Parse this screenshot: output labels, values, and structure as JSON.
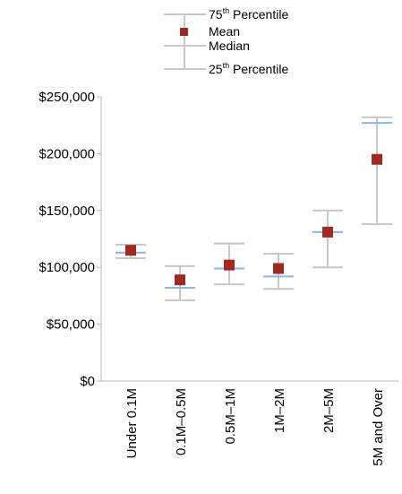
{
  "chart_data": {
    "type": "box",
    "title": "",
    "xlabel": "",
    "ylabel": "",
    "ylim": [
      0,
      250000
    ],
    "yticks": [
      0,
      50000,
      100000,
      150000,
      200000,
      250000
    ],
    "ytick_labels": [
      "$0",
      "$50,000",
      "$100,000",
      "$150,000",
      "$200,000",
      "$250,000"
    ],
    "grid": false,
    "legend_position": "top",
    "categories": [
      "Under 0.1M",
      "0.1M–0.5M",
      "0.5M–1M",
      "1M–2M",
      "2M–5M",
      "5M and Over"
    ],
    "series": [
      {
        "p75": [
          120000,
          101000,
          121000,
          112000,
          150000,
          232000
        ],
        "mean": [
          115000,
          89000,
          102000,
          99000,
          131000,
          195000
        ],
        "median": [
          113000,
          82000,
          99000,
          92000,
          131000,
          227000
        ],
        "p25": [
          108000,
          71000,
          85000,
          81000,
          100000,
          138000
        ]
      }
    ],
    "legend": {
      "p75": {
        "base": "75",
        "sup": "th",
        "rest": " Percentile"
      },
      "mean": "Mean",
      "median": "Median",
      "p25": {
        "base": "25",
        "sup": "th",
        "rest": " Percentile"
      }
    },
    "colors": {
      "whisker": "#c8c8c8",
      "median": "#8eb4e3",
      "mean": "#9e2a21",
      "axis": "#b8b8b8"
    }
  }
}
